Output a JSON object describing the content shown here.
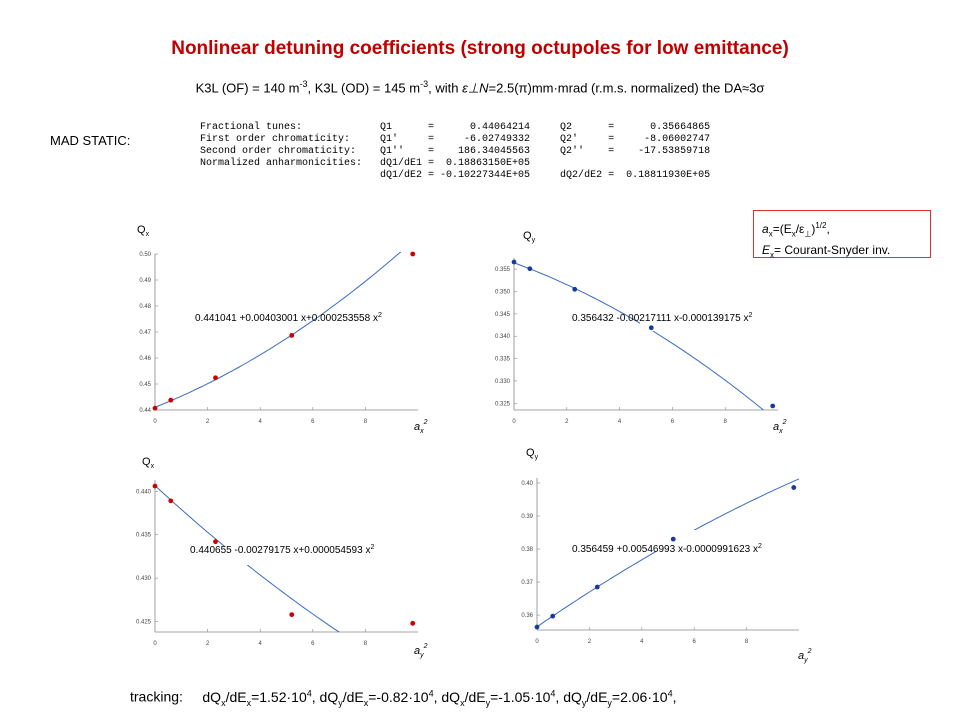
{
  "title": "Nonlinear detuning coefficients (strong octupoles for low emittance)",
  "subtitle": {
    "a": "K3L (OF) = 140 m",
    "b": "-3",
    "c": ", K3L (OD) = 145 m",
    "d": "-3",
    "e": ",  with ",
    "f": "ε⊥N",
    "g": "=2.5(π)mm·mrad (r.m.s. normalized) the DA≈3σ"
  },
  "mad": {
    "label": "MAD STATIC:",
    "rows": [
      "Fractional tunes:             Q1      =      0.44064214     Q2      =      0.35664865",
      "First order chromaticity:     Q1'     =     -6.02749332     Q2'     =     -8.06002747",
      "Second order chromaticity:    Q1''    =    186.34045563     Q2''    =    -17.53859718",
      "Normalized anharmonicities:   dQ1/dE1 =  0.18863150E+05",
      "                              dQ1/dE2 = -0.10227344E+05     dQ2/dE2 =  0.18811930E+05"
    ]
  },
  "definition": {
    "line1a": "a",
    "line1b": "x",
    "line1c": "=(E",
    "line1d": "x",
    "line1e": "/ε",
    "line1f": "⊥",
    "line1g": ")",
    "line1h": "1/2",
    "line1i": ",",
    "line2a": "E",
    "line2b": "x",
    "line2c": "= Courant-Snyder inv."
  },
  "tracking": {
    "label": "tracking:",
    "items": [
      {
        "num": "dQ",
        "nsub": "x",
        "den": "/dE",
        "dsub": "x",
        "val": "=1.52·10",
        "exp": "4",
        "sep": ", "
      },
      {
        "num": "dQ",
        "nsub": "y",
        "den": "/dE",
        "dsub": "x",
        "val": "=-0.82·10",
        "exp": "4",
        "sep": ", "
      },
      {
        "num": "dQ",
        "nsub": "x",
        "den": "/dE",
        "dsub": "y",
        "val": "=-1.05·10",
        "exp": "4",
        "sep": ", "
      },
      {
        "num": "dQ",
        "nsub": "y",
        "den": "/dE",
        "dsub": "y",
        "val": "=2.06·10",
        "exp": "4",
        "sep": ","
      }
    ]
  },
  "chart_data": [
    {
      "type": "scatter",
      "ylabel": "Q",
      "ylabel_sub": "x",
      "xlabel": "a",
      "xlabel_sub": "x",
      "xlabel_sup": "2",
      "xlim": [
        0,
        10
      ],
      "ylim": [
        0.44,
        0.5
      ],
      "xticks": [
        2,
        4,
        6,
        8
      ],
      "yticks": [
        0.44,
        0.45,
        0.46,
        0.47,
        0.48,
        0.49,
        0.5
      ],
      "ytick_labels": [
        "0.44",
        "0.45",
        "0.46",
        "0.47",
        "0.48",
        "0.49",
        "0.50"
      ],
      "fit_label": "0.441041 +0.00403001 x+0.000253558 x",
      "fit_sup": "2",
      "fit": [
        0.441041,
        0.00403001,
        0.000253558
      ],
      "points_x": [
        0,
        0.6,
        2.3,
        5.2,
        9.8
      ],
      "points_y": [
        0.4407,
        0.4438,
        0.4524,
        0.4687,
        0.5
      ],
      "marker_color": "#cc0000"
    },
    {
      "type": "scatter",
      "ylabel": "Q",
      "ylabel_sub": "y",
      "xlabel": "a",
      "xlabel_sub": "x",
      "xlabel_sup": "2",
      "xlim": [
        0,
        10
      ],
      "ylim": [
        0.3235,
        0.3575
      ],
      "xticks": [
        2,
        4,
        6,
        8
      ],
      "yticks": [
        0.325,
        0.33,
        0.335,
        0.34,
        0.345,
        0.35,
        0.355
      ],
      "ytick_labels": [
        "0.325",
        "0.330",
        "0.335",
        "0.340",
        "0.345",
        "0.350",
        "0.355"
      ],
      "fit_label": "0.356432 -0.00217111 x-0.000139175 x",
      "fit_sup": "2",
      "fit": [
        0.356432,
        -0.00217111,
        -0.000139175
      ],
      "points_x": [
        0,
        0.6,
        2.3,
        5.2,
        9.8
      ],
      "points_y": [
        0.3566,
        0.3551,
        0.3505,
        0.3419,
        0.3244
      ],
      "marker_color": "#1a3a9a"
    },
    {
      "type": "scatter",
      "ylabel": "Q",
      "ylabel_sub": "x",
      "xlabel": "a",
      "xlabel_sub": "y",
      "xlabel_sup": "2",
      "xlim": [
        0,
        10
      ],
      "ylim": [
        0.4238,
        0.4413
      ],
      "xticks": [
        2,
        4,
        6,
        8
      ],
      "yticks": [
        0.425,
        0.43,
        0.435,
        0.44
      ],
      "ytick_labels": [
        "0.425",
        "0.430",
        "0.435",
        "0.440"
      ],
      "fit_label": "0.440655 -0.00279175 x+0.000054593 x",
      "fit_sup": "2",
      "fit": [
        0.440655,
        -0.00279175,
        5.4593e-05
      ],
      "points_x": [
        0,
        0.6,
        2.3,
        5.2,
        9.8
      ],
      "points_y": [
        0.4406,
        0.4389,
        0.4342,
        0.4258,
        0.4248
      ],
      "marker_color": "#cc0000"
    },
    {
      "type": "scatter",
      "ylabel": "Q",
      "ylabel_sub": "y",
      "xlabel": "a",
      "xlabel_sub": "y",
      "xlabel_sup": "2",
      "xlim": [
        0,
        10
      ],
      "ylim": [
        0.3555,
        0.4015
      ],
      "xticks": [
        2,
        4,
        6,
        8
      ],
      "yticks": [
        0.36,
        0.37,
        0.38,
        0.39,
        0.4
      ],
      "ytick_labels": [
        "0.36",
        "0.37",
        "0.38",
        "0.39",
        "0.40"
      ],
      "fit_label": "0.356459 +0.00546993 x-0.0000991623 x",
      "fit_sup": "2",
      "fit": [
        0.356459,
        0.00546993,
        -9.91623e-05
      ],
      "points_x": [
        0,
        0.6,
        2.3,
        5.2,
        9.8
      ],
      "points_y": [
        0.3564,
        0.3597,
        0.3685,
        0.383,
        0.3986
      ],
      "marker_color": "#1a3a9a"
    }
  ]
}
